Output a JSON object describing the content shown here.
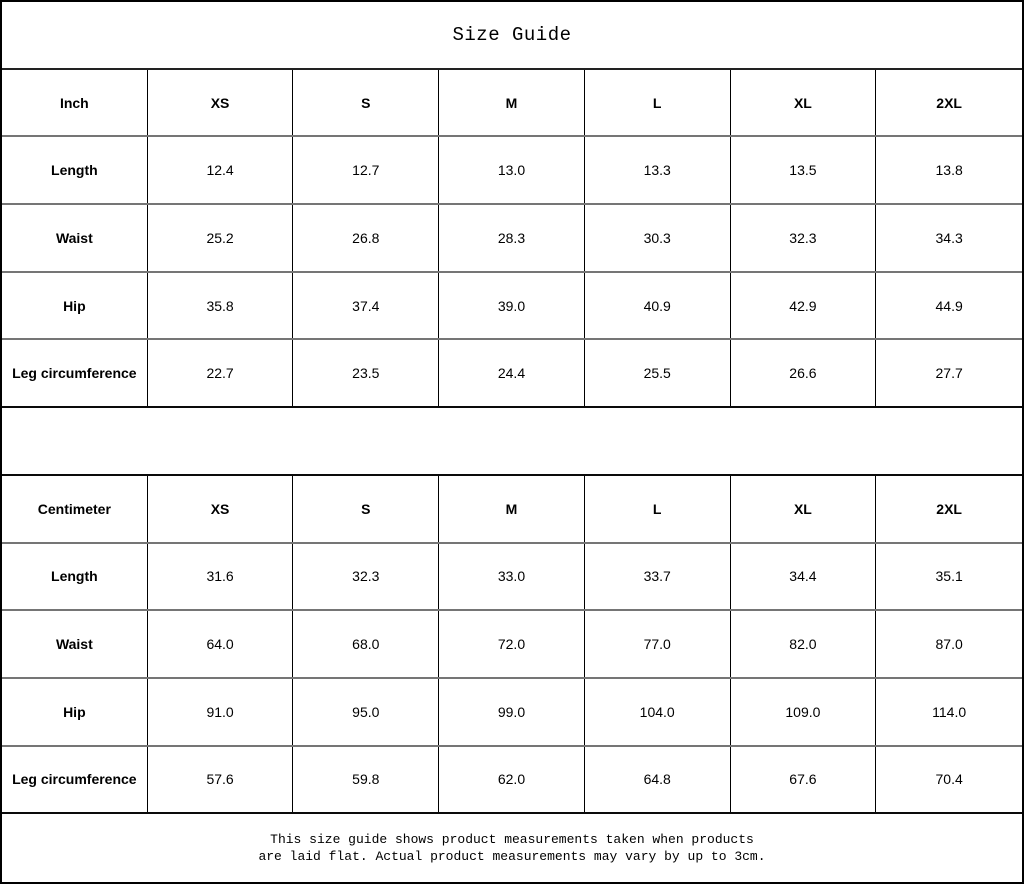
{
  "title": "Size Guide",
  "sizes": [
    "XS",
    "S",
    "M",
    "L",
    "XL",
    "2XL"
  ],
  "inch_table": {
    "unit_label": "Inch",
    "rows": [
      {
        "label": "Length",
        "values": [
          "12.4",
          "12.7",
          "13.0",
          "13.3",
          "13.5",
          "13.8"
        ]
      },
      {
        "label": "Waist",
        "values": [
          "25.2",
          "26.8",
          "28.3",
          "30.3",
          "32.3",
          "34.3"
        ]
      },
      {
        "label": "Hip",
        "values": [
          "35.8",
          "37.4",
          "39.0",
          "40.9",
          "42.9",
          "44.9"
        ]
      },
      {
        "label": "Leg circumference",
        "values": [
          "22.7",
          "23.5",
          "24.4",
          "25.5",
          "26.6",
          "27.7"
        ]
      }
    ]
  },
  "cm_table": {
    "unit_label": "Centimeter",
    "rows": [
      {
        "label": "Length",
        "values": [
          "31.6",
          "32.3",
          "33.0",
          "33.7",
          "34.4",
          "35.1"
        ]
      },
      {
        "label": "Waist",
        "values": [
          "64.0",
          "68.0",
          "72.0",
          "77.0",
          "82.0",
          "87.0"
        ]
      },
      {
        "label": "Hip",
        "values": [
          "91.0",
          "95.0",
          "99.0",
          "104.0",
          "109.0",
          "114.0"
        ]
      },
      {
        "label": "Leg circumference",
        "values": [
          "57.6",
          "59.8",
          "62.0",
          "64.8",
          "67.6",
          "70.4"
        ]
      }
    ]
  },
  "footer": {
    "line1": "This size guide shows product measurements taken when products",
    "line2": "are laid flat. Actual product measurements may vary by up to 3cm."
  }
}
